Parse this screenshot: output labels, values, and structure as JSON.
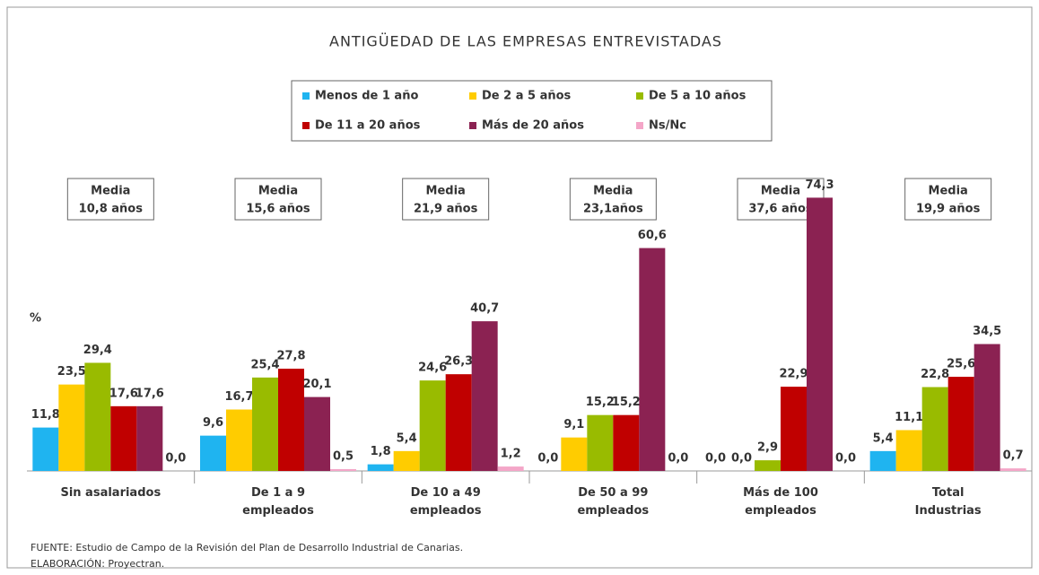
{
  "chart_data": {
    "type": "bar",
    "title": "ANTIGÜEDAD DE LAS EMPRESAS ENTREVISTADAS",
    "y_label": "%",
    "categories": [
      "Sin asalariados",
      "De 1 a 9\nempleados",
      "De 10 a 49\nempleados",
      "De 50 a 99\nempleados",
      "Más de 100\nempleados",
      "Total\nIndustrias"
    ],
    "media": [
      {
        "title": "Media",
        "text": "10,8 años"
      },
      {
        "title": "Media",
        "text": "15,6 años"
      },
      {
        "title": "Media",
        "text": "21,9 años"
      },
      {
        "title": "Media",
        "text": "23,1años"
      },
      {
        "title": "Media",
        "text": "37,6 años"
      },
      {
        "title": "Media",
        "text": "19,9 años"
      }
    ],
    "series": [
      {
        "name": "Menos de 1 año",
        "color": "#1fb4f0",
        "values": [
          11.8,
          9.6,
          1.8,
          0.0,
          0.0,
          5.4
        ],
        "value_labels": [
          "11,8",
          "9,6",
          "1,8",
          "0,0",
          "0,0",
          "5,4"
        ]
      },
      {
        "name": "De 2 a 5 años",
        "color": "#ffcc00",
        "values": [
          23.5,
          16.7,
          5.4,
          9.1,
          0.0,
          11.1
        ],
        "value_labels": [
          "23,5",
          "16,7",
          "5,4",
          "9,1",
          "0,0",
          "11,1"
        ]
      },
      {
        "name": "De 5 a 10 años",
        "color": "#99bb00",
        "values": [
          29.4,
          25.4,
          24.6,
          15.2,
          2.9,
          22.8
        ],
        "value_labels": [
          "29,4",
          "25,4",
          "24,6",
          "15,2",
          "2,9",
          "22,8"
        ]
      },
      {
        "name": "De 11 a 20 años",
        "color": "#c00000",
        "values": [
          17.6,
          27.8,
          26.3,
          15.2,
          22.9,
          25.6
        ],
        "value_labels": [
          "17,6",
          "27,8",
          "26,3",
          "15,2",
          "22,9",
          "25,6"
        ]
      },
      {
        "name": "Más de 20 años",
        "color": "#8b2252",
        "values": [
          17.6,
          20.1,
          40.7,
          60.6,
          74.3,
          34.5
        ],
        "value_labels": [
          "17,6",
          "20,1",
          "40,7",
          "60,6",
          "74,3",
          "34,5"
        ]
      },
      {
        "name": "Ns/Nc",
        "color": "#f4a6c8",
        "values": [
          0.0,
          0.5,
          1.2,
          0.0,
          0.0,
          0.7
        ],
        "value_labels": [
          "0,0",
          "0,5",
          "1,2",
          "0,0",
          "0,0",
          "0,7"
        ]
      }
    ],
    "ylim": [
      0,
      80
    ],
    "sources": [
      "FUENTE: Estudio de Campo de la Revisión del Plan de Desarrollo Industrial de Canarias.",
      "ELABORACIÓN: Proyectran."
    ]
  }
}
